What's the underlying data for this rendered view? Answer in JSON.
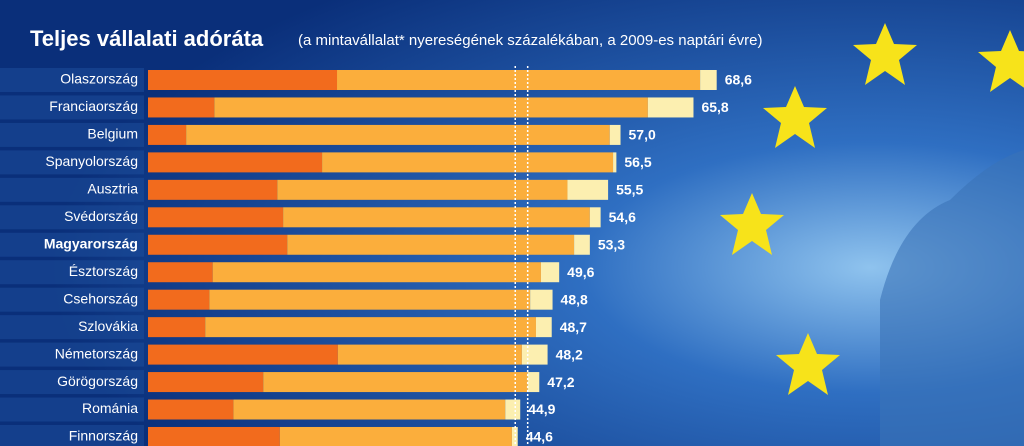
{
  "chart_data": {
    "type": "stacked-bar-horizontal",
    "title": "Teljes vállalati adóráta",
    "subtitle": "(a mintavállalat* nyereségének százalékában, a 2009-es naptári évre)",
    "categories": [
      "Olaszország",
      "Franciaország",
      "Belgium",
      "Spanyolország",
      "Ausztria",
      "Svédország",
      "Magyarország",
      "Észtország",
      "Csehország",
      "Szlovákia",
      "Németország",
      "Görögország",
      "Románia",
      "Finnország"
    ],
    "highlight_category": "Magyarország",
    "series": [
      {
        "color": "#f26b1d",
        "values": [
          22.8,
          8.0,
          4.6,
          21.0,
          15.6,
          16.3,
          16.8,
          7.8,
          7.4,
          6.9,
          22.9,
          13.9,
          10.3,
          15.9
        ]
      },
      {
        "color": "#fbae3c",
        "values": [
          43.8,
          52.3,
          51.1,
          35.1,
          35.0,
          37.0,
          34.6,
          39.6,
          38.7,
          39.9,
          22.2,
          31.9,
          32.8,
          28.0
        ]
      },
      {
        "color": "#fcefb0",
        "values": [
          2.0,
          5.5,
          1.3,
          0.4,
          4.9,
          1.3,
          1.9,
          2.2,
          2.7,
          1.9,
          3.1,
          1.4,
          1.8,
          0.7
        ]
      }
    ],
    "totals": [
      68.6,
      65.8,
      57.0,
      56.5,
      55.5,
      54.6,
      53.3,
      49.6,
      48.8,
      48.7,
      48.2,
      47.2,
      44.9,
      44.6
    ],
    "total_labels": [
      "68,6",
      "65,8",
      "57,0",
      "56,5",
      "55,5",
      "54,6",
      "53,3",
      "49,6",
      "48,8",
      "48,7",
      "48,2",
      "47,2",
      "44,9",
      "44,6"
    ],
    "reference_lines": [
      44.3,
      45.8
    ],
    "xlim": [
      0,
      100
    ]
  }
}
